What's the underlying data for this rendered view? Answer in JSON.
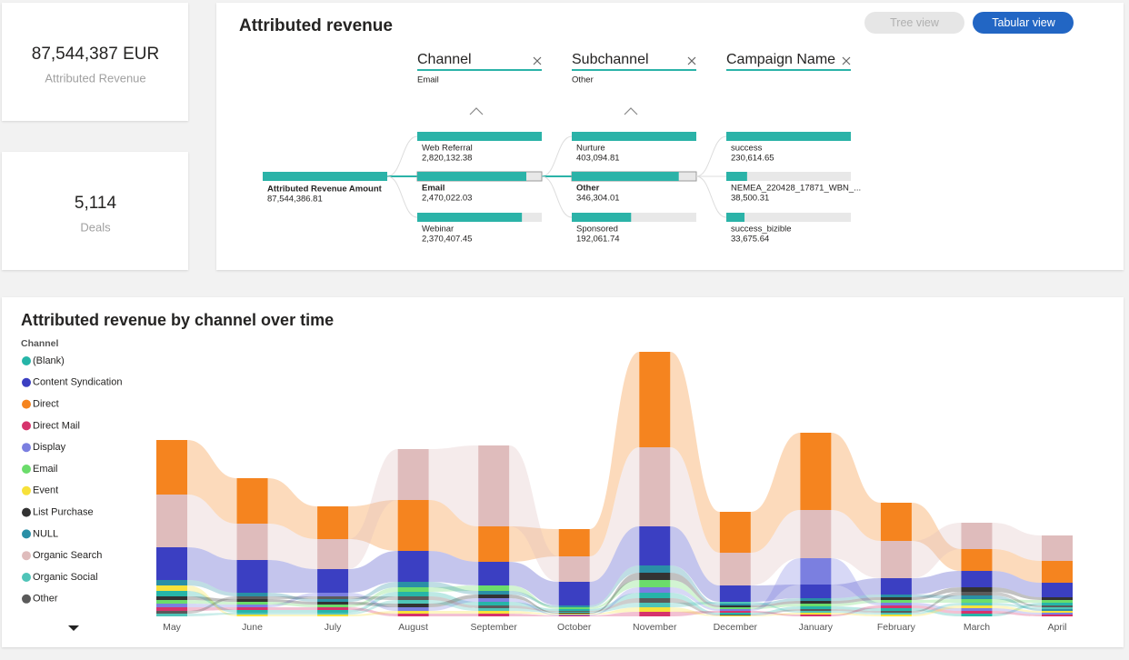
{
  "kpis": [
    {
      "value": "87,544,387 EUR",
      "label": "Attributed Revenue"
    },
    {
      "value": "5,114",
      "label": "Deals"
    }
  ],
  "tree": {
    "title": "Attributed revenue",
    "buttons": [
      "Tree view",
      "Tabular view"
    ],
    "levels": [
      {
        "name": "Channel",
        "selected": "Email"
      },
      {
        "name": "Subchannel",
        "selected": "Other"
      },
      {
        "name": "Campaign Name"
      }
    ],
    "root": {
      "label": "Attributed Revenue Amount",
      "value": 87544386.81,
      "value_label": "87,544,386.81"
    },
    "columns": [
      {
        "nodes": [
          {
            "label": "Web Referral",
            "value": 2820132.38,
            "value_label": "2,820,132.38"
          },
          {
            "label": "Email",
            "value": 2470022.03,
            "value_label": "2,470,022.03"
          },
          {
            "label": "Webinar",
            "value": 2370407.45,
            "value_label": "2,370,407.45"
          }
        ]
      },
      {
        "nodes": [
          {
            "label": "Nurture",
            "value": 403094.81,
            "value_label": "403,094.81"
          },
          {
            "label": "Other",
            "value": 346304.01,
            "value_label": "346,304.01"
          },
          {
            "label": "Sponsored",
            "value": 192061.74,
            "value_label": "192,061.74"
          }
        ]
      },
      {
        "nodes": [
          {
            "label": "success",
            "value": 230614.65,
            "value_label": "230,614.65"
          },
          {
            "label": "NEMEA_220428_17871_WBN_...",
            "value": 38500.31,
            "value_label": "38,500.31"
          },
          {
            "label": "success_bizible",
            "value": 33675.64,
            "value_label": "33,675.64"
          }
        ]
      }
    ]
  },
  "chart_data": {
    "type": "ribbon",
    "title": "Attributed revenue by channel over time",
    "legend_title": "Channel",
    "categories": [
      "May",
      "June",
      "July",
      "August",
      "September",
      "October",
      "November",
      "December",
      "January",
      "February",
      "March",
      "April"
    ],
    "series": [
      {
        "name": "(Blank)",
        "color": "#26b5a8",
        "values": [
          6,
          3,
          3,
          5,
          4,
          2,
          6,
          2,
          3,
          3,
          3,
          3
        ]
      },
      {
        "name": "Content Syndication",
        "color": "#3b3fc2",
        "values": [
          36,
          36,
          26,
          34,
          26,
          26,
          43,
          18,
          15,
          18,
          18,
          16
        ]
      },
      {
        "name": "Direct",
        "color": "#f5841f",
        "values": [
          60,
          50,
          36,
          56,
          39,
          30,
          105,
          45,
          85,
          42,
          24,
          24
        ]
      },
      {
        "name": "Direct Mail",
        "color": "#d6336c",
        "values": [
          4,
          3,
          3,
          3,
          3,
          1,
          5,
          2,
          2,
          3,
          3,
          2
        ]
      },
      {
        "name": "Display",
        "color": "#7b7fe0",
        "values": [
          4,
          3,
          4,
          4,
          4,
          1,
          6,
          2,
          29,
          3,
          3,
          2
        ]
      },
      {
        "name": "Email",
        "color": "#6bdc6b",
        "values": [
          4,
          3,
          3,
          5,
          6,
          2,
          8,
          2,
          3,
          3,
          4,
          3
        ]
      },
      {
        "name": "Event",
        "color": "#f7e13a",
        "values": [
          6,
          2,
          2,
          3,
          3,
          1,
          5,
          1,
          2,
          2,
          3,
          2
        ]
      },
      {
        "name": "List Purchase",
        "color": "#333333",
        "values": [
          4,
          3,
          3,
          4,
          4,
          1,
          8,
          2,
          3,
          3,
          5,
          3
        ]
      },
      {
        "name": "NULL",
        "color": "#2a8fa6",
        "values": [
          6,
          4,
          3,
          6,
          4,
          2,
          8,
          2,
          3,
          3,
          4,
          2
        ]
      },
      {
        "name": "Organic Search",
        "color": "#dfbcbc",
        "values": [
          58,
          40,
          33,
          56,
          89,
          28,
          87,
          36,
          53,
          41,
          29,
          28
        ]
      },
      {
        "name": "Organic Social",
        "color": "#4fc4b8",
        "values": [
          3,
          2,
          2,
          4,
          3,
          1,
          5,
          2,
          2,
          2,
          3,
          2
        ]
      },
      {
        "name": "Other",
        "color": "#5a5a5a",
        "values": [
          3,
          3,
          3,
          4,
          3,
          1,
          5,
          1,
          2,
          2,
          4,
          2
        ]
      }
    ]
  }
}
